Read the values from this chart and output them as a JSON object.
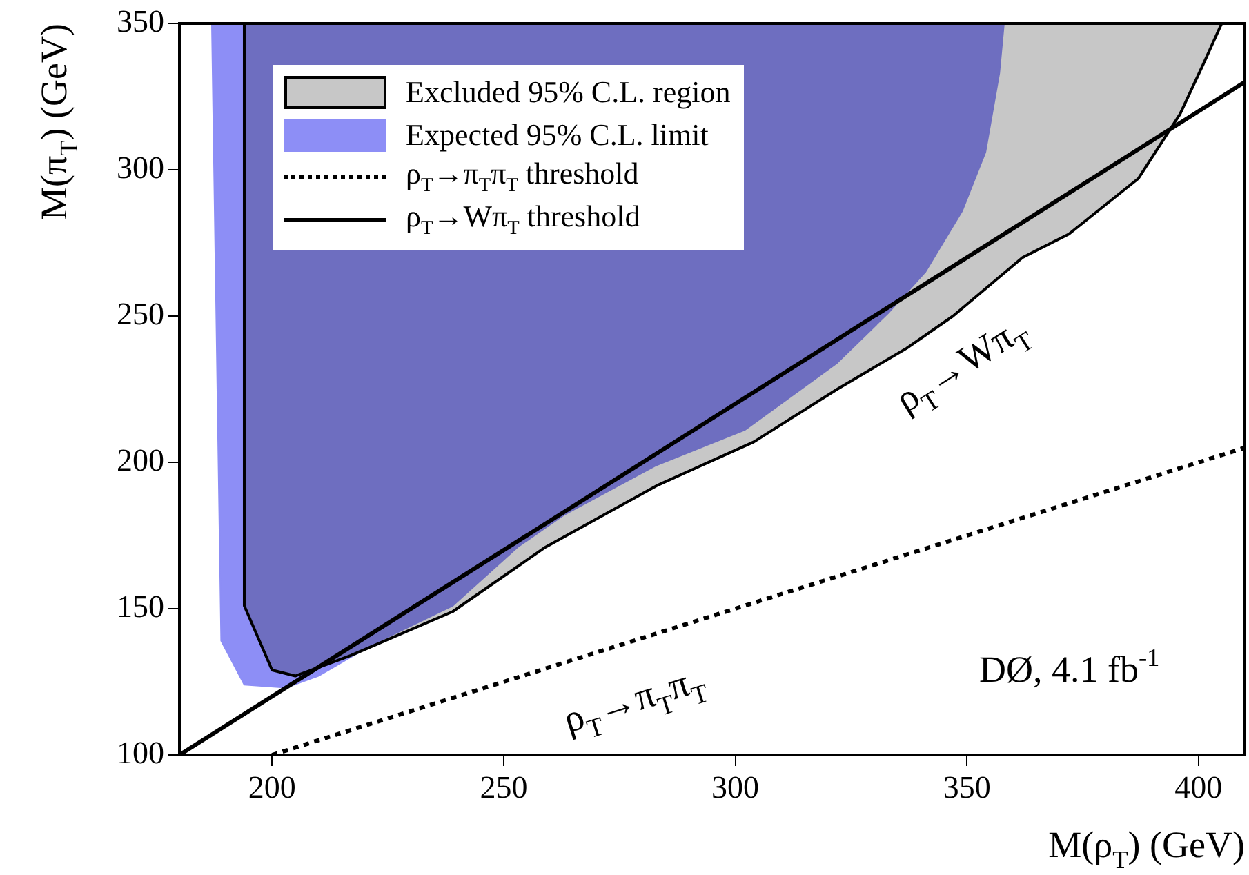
{
  "chart_data": {
    "type": "area",
    "xlabel": "M(ρ$_{T}$) (GeV)",
    "ylabel": "M(π$_{T}$) (GeV)",
    "xlim": [
      180,
      410
    ],
    "ylim": [
      100,
      350
    ],
    "xticks": [
      200,
      250,
      300,
      350,
      400
    ],
    "yticks": [
      100,
      150,
      200,
      250,
      300,
      350
    ],
    "grid": false,
    "legend": "top left",
    "marker": "none",
    "series": [
      {
        "name": "Excluded 95% C.L. region",
        "type": "area",
        "color": "#000000",
        "x": [
          194,
          194,
          200,
          205,
          217,
          239,
          259,
          283,
          304,
          322,
          337,
          347,
          362,
          372,
          387,
          396,
          401,
          405
        ],
        "values": [
          350,
          151,
          129,
          127,
          134,
          149,
          171,
          192,
          207,
          225,
          239,
          250,
          270,
          278,
          297,
          319,
          336,
          350
        ]
      },
      {
        "name": "Expected 95% C.L. limit",
        "type": "area",
        "color": "#8d8ef6",
        "x": [
          187,
          189,
          194,
          203,
          210,
          222,
          239,
          253,
          263,
          283,
          302,
          322,
          333,
          341,
          349,
          354,
          357,
          358
        ],
        "values": [
          350,
          139,
          124,
          123,
          127,
          138,
          151,
          171,
          182,
          199,
          211,
          234,
          251,
          265,
          286,
          306,
          333,
          350
        ]
      },
      {
        "name": "ρ$_{T}$→π$_{T}$π$_{T}$ threshold",
        "type": "line",
        "color": "#000000",
        "line_style": "dotted",
        "x": [
          200,
          410
        ],
        "values": [
          100,
          205
        ]
      },
      {
        "name": "ρ$_{T}$→Wπ$_{T}$ threshold",
        "type": "line",
        "color": "#000000",
        "line_style": "solid",
        "x": [
          180,
          410
        ],
        "values": [
          100,
          330
        ]
      }
    ],
    "annotations": [
      "ρ$_{T}$→Wπ$_{T}$",
      "ρ$_{T}$→π$_{T}$π$_{T}$",
      "DØ, 4.1 fb$^{-1}$"
    ]
  }
}
